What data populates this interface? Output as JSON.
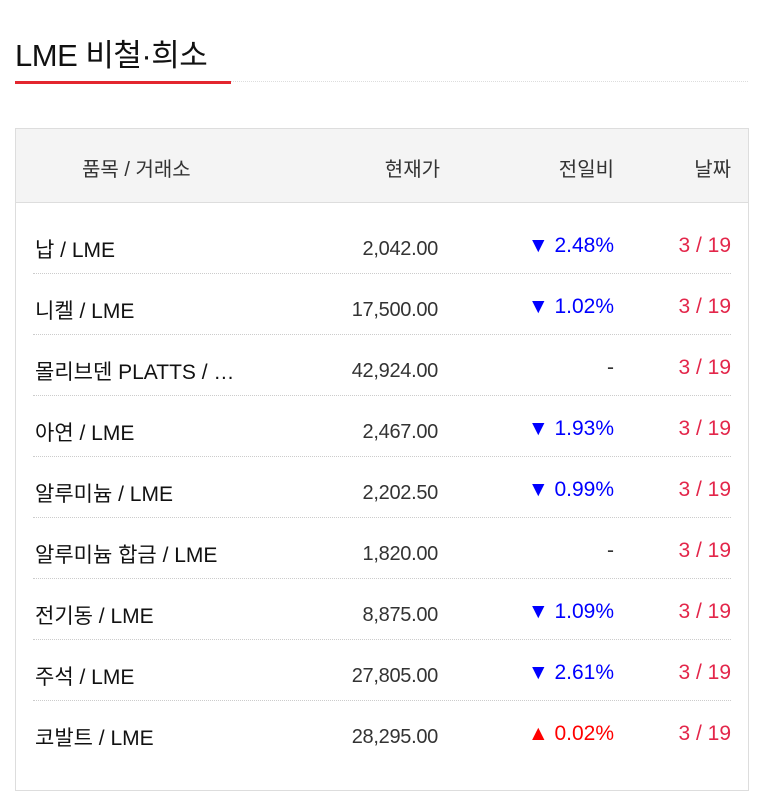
{
  "title": "LME 비철·희소",
  "header": {
    "item": "품목 / 거래소",
    "price": "현재가",
    "change": "전일비",
    "date": "날짜"
  },
  "colors": {
    "accent": "#e3262f",
    "down": "#0000ff",
    "up": "#ff0000",
    "date": "#e3264a"
  },
  "rows": [
    {
      "name": "납 / LME",
      "price": "2,042.00",
      "change": "▼ 2.48%",
      "dir": "down",
      "date": "3 / 19"
    },
    {
      "name": "니켈 / LME",
      "price": "17,500.00",
      "change": "▼ 1.02%",
      "dir": "down",
      "date": "3 / 19"
    },
    {
      "name": "몰리브덴 PLATTS / …",
      "price": "42,924.00",
      "change": "-",
      "dir": "flat",
      "date": "3 / 19"
    },
    {
      "name": "아연 / LME",
      "price": "2,467.00",
      "change": "▼ 1.93%",
      "dir": "down",
      "date": "3 / 19"
    },
    {
      "name": "알루미늄 / LME",
      "price": "2,202.50",
      "change": "▼ 0.99%",
      "dir": "down",
      "date": "3 / 19"
    },
    {
      "name": "알루미늄 합금 / LME",
      "price": "1,820.00",
      "change": "-",
      "dir": "flat",
      "date": "3 / 19"
    },
    {
      "name": "전기동 / LME",
      "price": "8,875.00",
      "change": "▼ 1.09%",
      "dir": "down",
      "date": "3 / 19"
    },
    {
      "name": "주석 / LME",
      "price": "27,805.00",
      "change": "▼ 2.61%",
      "dir": "down",
      "date": "3 / 19"
    },
    {
      "name": "코발트 / LME",
      "price": "28,295.00",
      "change": "▲ 0.02%",
      "dir": "up",
      "date": "3 / 19"
    }
  ]
}
